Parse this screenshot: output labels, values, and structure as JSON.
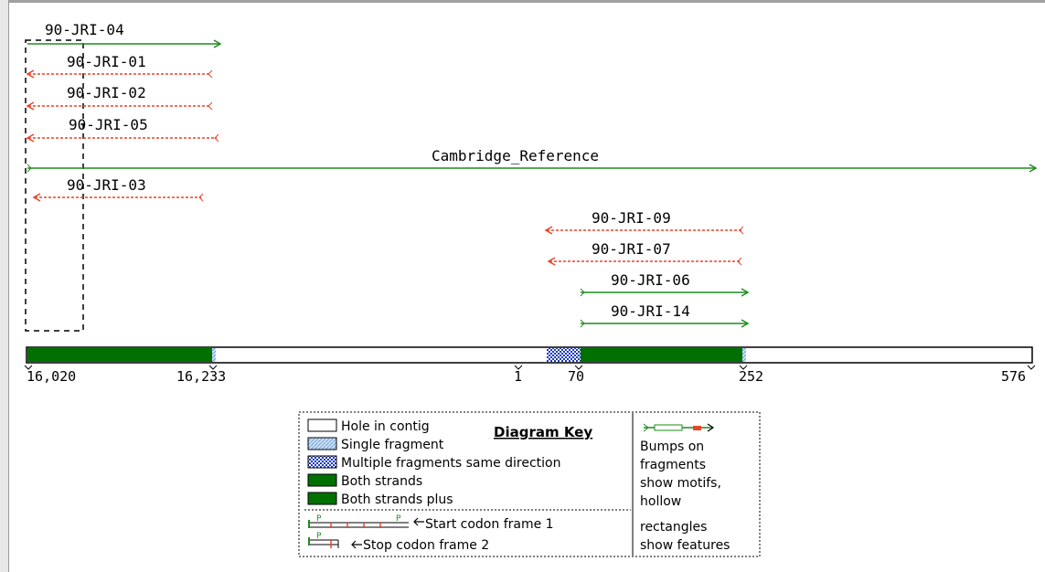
{
  "colors": {
    "forward": "#1e8c1e",
    "reverse": "#e8452a",
    "both_strands": "#007000",
    "single": "#9fc3e8",
    "multiple": "#1b39c8"
  },
  "fragments": [
    {
      "name": "90-JRI-04",
      "direction": "forward",
      "style": "solid"
    },
    {
      "name": "90-JRI-01",
      "direction": "reverse",
      "style": "dashed"
    },
    {
      "name": "90-JRI-02",
      "direction": "reverse",
      "style": "dashed"
    },
    {
      "name": "90-JRI-05",
      "direction": "reverse",
      "style": "dashed"
    },
    {
      "name": "Cambridge_Reference",
      "direction": "forward",
      "style": "solid"
    },
    {
      "name": "90-JRI-03",
      "direction": "reverse",
      "style": "dashed"
    },
    {
      "name": "90-JRI-09",
      "direction": "reverse",
      "style": "dashed"
    },
    {
      "name": "90-JRI-07",
      "direction": "reverse",
      "style": "dashed"
    },
    {
      "name": "90-JRI-06",
      "direction": "forward",
      "style": "solid"
    },
    {
      "name": "90-JRI-14",
      "direction": "forward",
      "style": "solid"
    }
  ],
  "contig_bar": {
    "segments": [
      {
        "type": "both_strands"
      },
      {
        "type": "hole"
      },
      {
        "type": "multiple"
      },
      {
        "type": "both_strands"
      },
      {
        "type": "hole"
      }
    ]
  },
  "ticks": [
    "16,020",
    "16,233",
    "1",
    "70",
    "252",
    "576"
  ],
  "key": {
    "title": "Diagram Key",
    "items": [
      {
        "label": "Hole in contig",
        "swatch": "hole"
      },
      {
        "label": "Single fragment",
        "swatch": "single"
      },
      {
        "label": "Multiple fragments same direction",
        "swatch": "multiple"
      },
      {
        "label": "Both strands",
        "swatch": "both_strands"
      },
      {
        "label": "Both strands plus",
        "swatch": "both_strands"
      }
    ],
    "start_codon": "Start codon frame 1",
    "stop_codon": "Stop codon frame 2",
    "motif_text": [
      "Bumps on",
      "fragments",
      "show motifs,",
      "hollow",
      "rectangles",
      "show features"
    ]
  }
}
